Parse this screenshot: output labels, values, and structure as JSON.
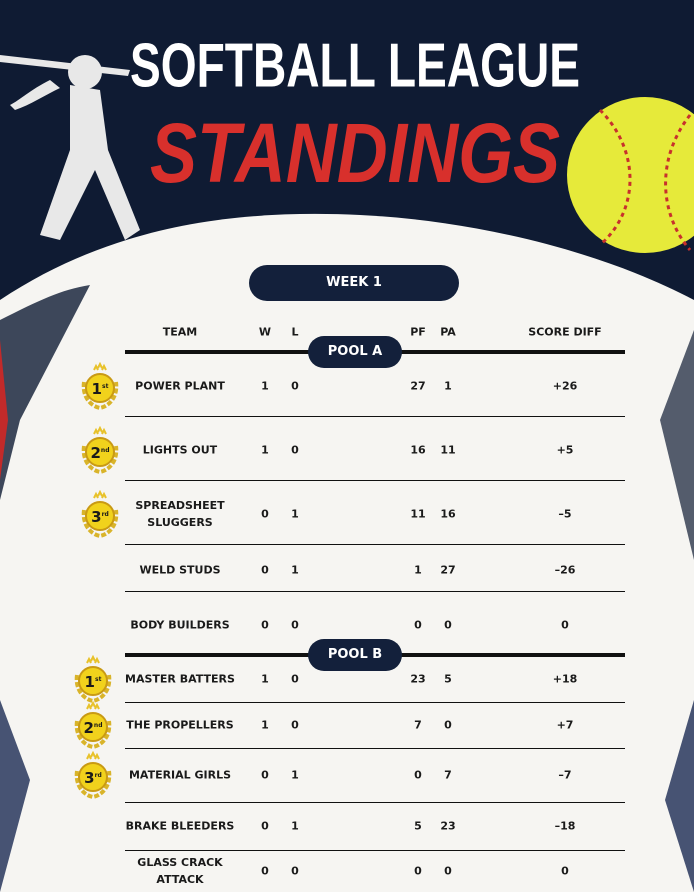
{
  "header": {
    "title_line1": "SOFTBALL LEAGUE",
    "title_line2": "STANDINGS",
    "week": "WEEK 1"
  },
  "table": {
    "columns": [
      "TEAM",
      "W",
      "L",
      "PF",
      "PA",
      "SCORE DIFF"
    ],
    "pools": [
      {
        "name": "POOL A",
        "rows": [
          {
            "rank": "1",
            "suffix": "st",
            "team": "POWER PLANT",
            "w": "1",
            "l": "0",
            "pf": "27",
            "pa": "1",
            "diff": "+26"
          },
          {
            "rank": "2",
            "suffix": "nd",
            "team": "LIGHTS OUT",
            "w": "1",
            "l": "0",
            "pf": "16",
            "pa": "11",
            "diff": "+5"
          },
          {
            "rank": "3",
            "suffix": "rd",
            "team": "SPREADSHEET SLUGGERS",
            "w": "0",
            "l": "1",
            "pf": "11",
            "pa": "16",
            "diff": "–5"
          },
          {
            "team": "WELD STUDS",
            "w": "0",
            "l": "1",
            "pf": "1",
            "pa": "27",
            "diff": "–26"
          },
          {
            "team": "BODY BUILDERS",
            "w": "0",
            "l": "0",
            "pf": "0",
            "pa": "0",
            "diff": "0"
          }
        ]
      },
      {
        "name": "POOL B",
        "rows": [
          {
            "rank": "1",
            "suffix": "st",
            "team": "MASTER BATTERS",
            "w": "1",
            "l": "0",
            "pf": "23",
            "pa": "5",
            "diff": "+18"
          },
          {
            "rank": "2",
            "suffix": "nd",
            "team": "THE PROPELLERS",
            "w": "1",
            "l": "0",
            "pf": "7",
            "pa": "0",
            "diff": "+7"
          },
          {
            "rank": "3",
            "suffix": "rd",
            "team": "MATERIAL GIRLS",
            "w": "0",
            "l": "1",
            "pf": "0",
            "pa": "7",
            "diff": "–7"
          },
          {
            "team": "BRAKE BLEEDERS",
            "w": "0",
            "l": "1",
            "pf": "5",
            "pa": "23",
            "diff": "–18"
          },
          {
            "team": "GLASS CRACK ATTACK",
            "w": "0",
            "l": "0",
            "pf": "0",
            "pa": "0",
            "diff": "0"
          }
        ]
      }
    ]
  }
}
